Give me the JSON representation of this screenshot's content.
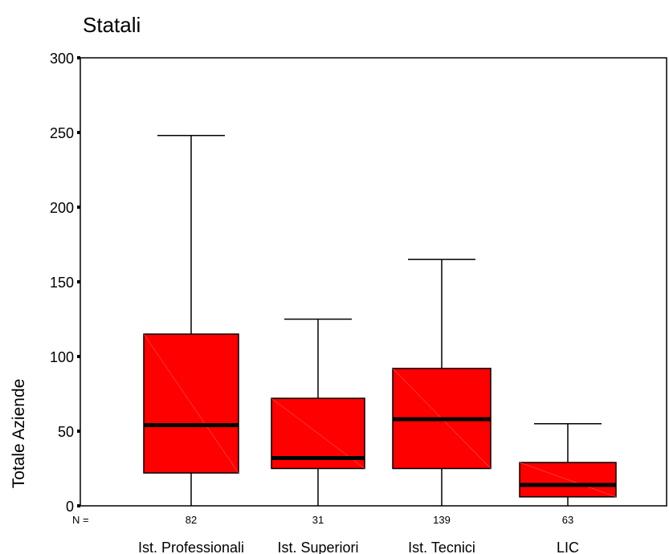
{
  "chart_data": {
    "type": "boxplot",
    "title": "Statali",
    "ylabel": "Totale Aziende",
    "xlabel": "",
    "ylim": [
      0,
      300
    ],
    "yticks": [
      0,
      50,
      100,
      150,
      200,
      250,
      300
    ],
    "n_label": "N =",
    "box_color": "#ff0000",
    "median_color": "#000000",
    "categories": [
      "Ist. Professionali",
      "Ist. Superiori",
      "Ist. Tecnici",
      "LIC"
    ],
    "n": [
      "82",
      "31",
      "139",
      "63"
    ],
    "boxes": [
      {
        "min": 0,
        "q1": 22,
        "median": 54,
        "q3": 115,
        "max": 248
      },
      {
        "min": 0,
        "q1": 25,
        "median": 32,
        "q3": 72,
        "max": 125
      },
      {
        "min": 0,
        "q1": 25,
        "median": 58,
        "q3": 92,
        "max": 165
      },
      {
        "min": 0,
        "q1": 6,
        "median": 14,
        "q3": 29,
        "max": 55
      }
    ]
  }
}
